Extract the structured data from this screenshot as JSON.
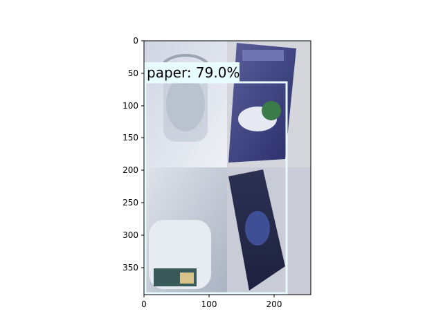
{
  "image": {
    "description": "2x2 mosaic of photos: glass jar, paper magazine cover, plastic bottle, paper brochure",
    "tiles": [
      {
        "name": "glass-jar-tile",
        "color": "#d9dde6"
      },
      {
        "name": "magazine-tile",
        "color": "#b9bcc7"
      },
      {
        "name": "plastic-bottle-tile",
        "color": "#c7cdd8"
      },
      {
        "name": "brochure-tile",
        "color": "#c9ccd6"
      }
    ]
  },
  "detection": {
    "label": "paper: 79.0%",
    "box_color": "#e8fbff",
    "label_bg": "#e8fbff"
  },
  "axes": {
    "x_ticks": [
      "0",
      "100",
      "200"
    ],
    "y_ticks": [
      "0",
      "50",
      "100",
      "150",
      "200",
      "250",
      "300",
      "350"
    ],
    "xlim": [
      0,
      256
    ],
    "ylim": [
      392,
      0
    ]
  }
}
